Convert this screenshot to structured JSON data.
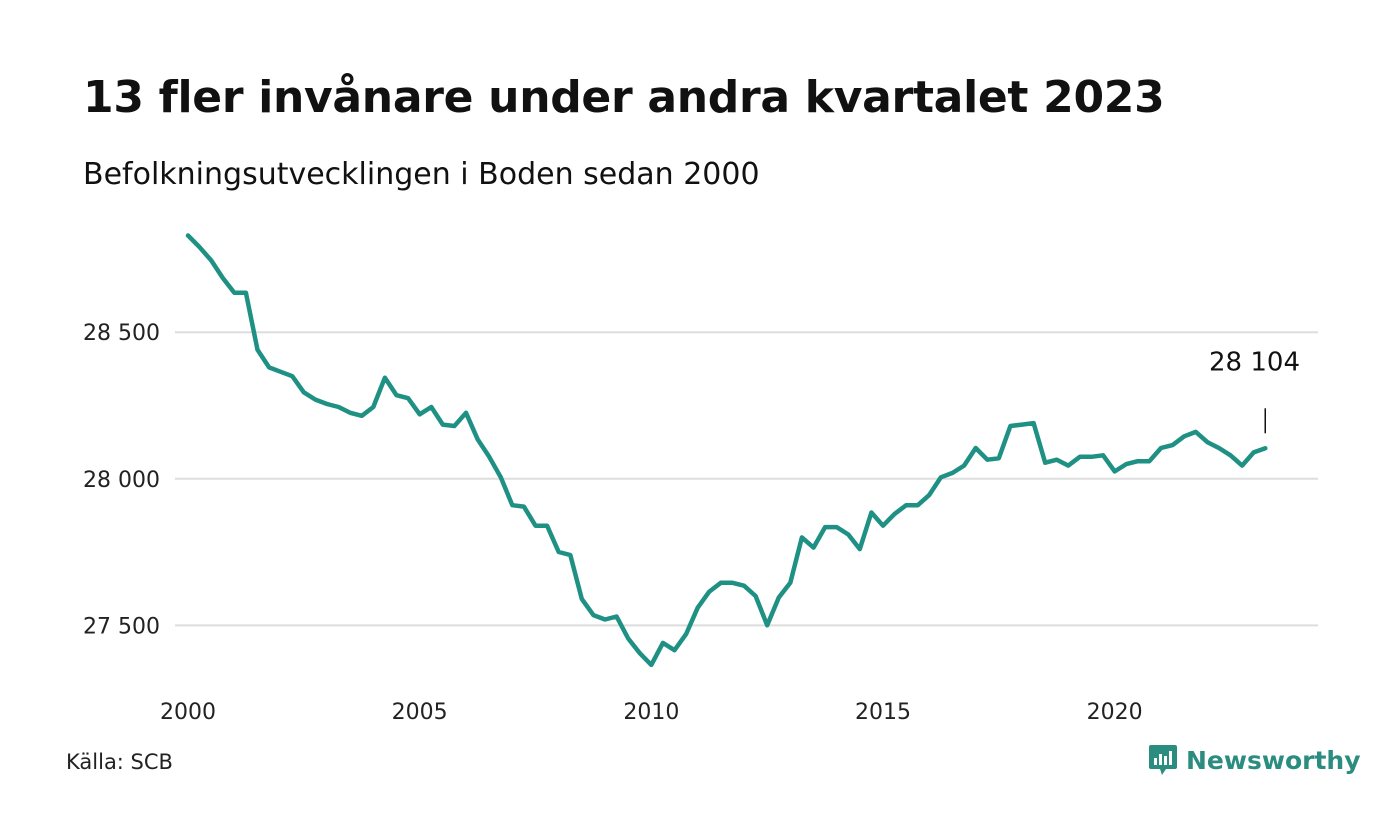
{
  "header": {
    "title": "13 fler invånare under andra kvartalet 2023",
    "subtitle": "Befolkningsutvecklingen i Boden sedan 2000"
  },
  "footer": {
    "source": "Källa: SCB",
    "brand": "Newsworthy",
    "brand_icon": "newsworthy-logo-icon",
    "brand_color": "#2b8c80"
  },
  "chart_data": {
    "type": "line",
    "title": "13 fler invånare under andra kvartalet 2023",
    "subtitle": "Befolkningsutvecklingen i Boden sedan 2000",
    "xlabel": "",
    "ylabel": "",
    "xlim": [
      2000.0,
      2024.0
    ],
    "ylim": [
      27310,
      28900
    ],
    "x_ticks": [
      2000,
      2005,
      2010,
      2015,
      2020
    ],
    "x_tick_labels": [
      "2000",
      "2005",
      "2010",
      "2015",
      "2020"
    ],
    "y_ticks": [
      27500,
      28000,
      28500
    ],
    "y_tick_labels": [
      "27 500",
      "28 000",
      "28 500"
    ],
    "grid": "horizontal",
    "line_color": "#1f9184",
    "annotation": {
      "label": "28 104",
      "x": 2023.25,
      "y": 28104
    },
    "series": [
      {
        "x": [
          2000.0,
          2000.25,
          2000.5,
          2000.75,
          2001.0,
          2001.25,
          2001.5,
          2001.75,
          2002.0,
          2002.25,
          2002.5,
          2002.75,
          2003.0,
          2003.25,
          2003.5,
          2003.75,
          2004.0,
          2004.25,
          2004.5,
          2004.75,
          2005.0,
          2005.25,
          2005.5,
          2005.75,
          2006.0,
          2006.25,
          2006.5,
          2006.75,
          2007.0,
          2007.25,
          2007.5,
          2007.75,
          2008.0,
          2008.25,
          2008.5,
          2008.75,
          2009.0,
          2009.25,
          2009.5,
          2009.75,
          2010.0,
          2010.25,
          2010.5,
          2010.75,
          2011.0,
          2011.25,
          2011.5,
          2011.75,
          2012.0,
          2012.25,
          2012.5,
          2012.75,
          2013.0,
          2013.25,
          2013.5,
          2013.75,
          2014.0,
          2014.25,
          2014.5,
          2014.75,
          2015.0,
          2015.25,
          2015.5,
          2015.75,
          2016.0,
          2016.25,
          2016.5,
          2016.75,
          2017.0,
          2017.25,
          2017.5,
          2017.75,
          2018.0,
          2018.25,
          2018.5,
          2018.75,
          2019.0,
          2019.25,
          2019.5,
          2019.75,
          2020.0,
          2020.25,
          2020.5,
          2020.75,
          2021.0,
          2021.25,
          2021.5,
          2021.75,
          2022.0,
          2022.25,
          2022.5,
          2022.75,
          2023.0,
          2023.25
        ],
        "values": [
          28830,
          28790,
          28745,
          28685,
          28635,
          28635,
          28440,
          28380,
          28365,
          28350,
          28295,
          28270,
          28255,
          28245,
          28225,
          28215,
          28245,
          28345,
          28285,
          28275,
          28220,
          28245,
          28185,
          28180,
          28225,
          28135,
          28075,
          28005,
          27910,
          27905,
          27840,
          27840,
          27750,
          27740,
          27590,
          27535,
          27520,
          27530,
          27455,
          27405,
          27365,
          27440,
          27415,
          27470,
          27560,
          27615,
          27645,
          27645,
          27635,
          27600,
          27500,
          27595,
          27645,
          27800,
          27765,
          27835,
          27835,
          27810,
          27760,
          27885,
          27840,
          27880,
          27910,
          27910,
          27945,
          28005,
          28020,
          28045,
          28105,
          28065,
          28070,
          28180,
          28185,
          28190,
          28055,
          28065,
          28045,
          28075,
          28075,
          28080,
          28025,
          28050,
          28060,
          28060,
          28105,
          28115,
          28145,
          28160,
          28125,
          28105,
          28080,
          28045,
          28090,
          28104
        ]
      }
    ]
  }
}
